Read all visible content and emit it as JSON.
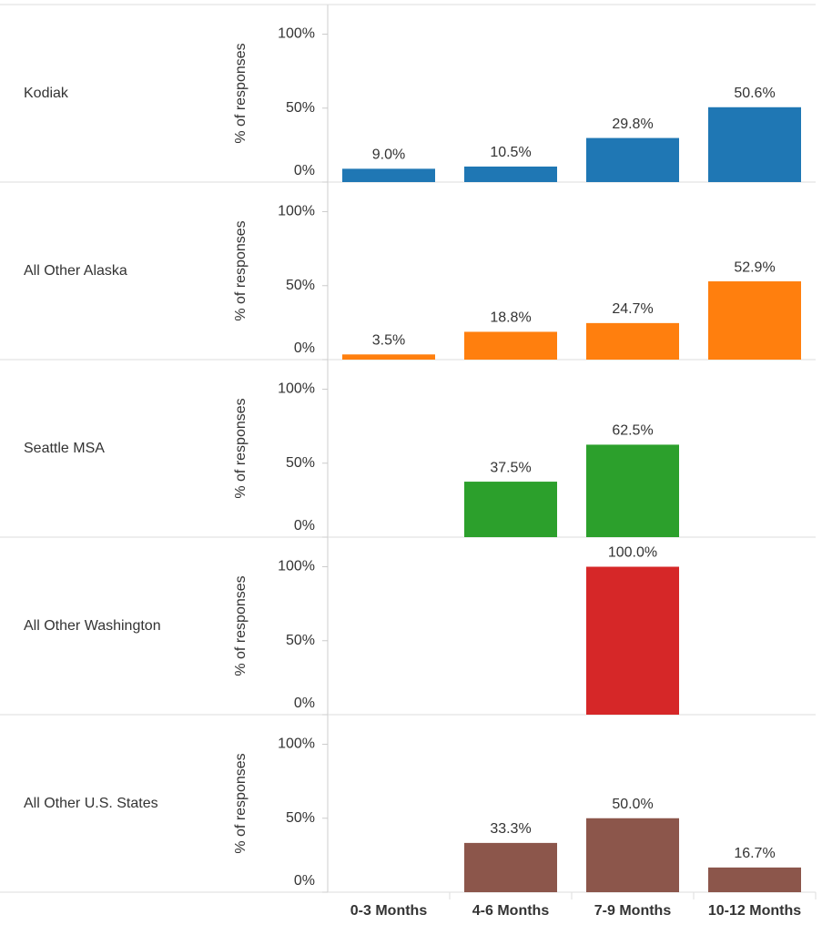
{
  "chart_data": [
    {
      "type": "bar",
      "title": "Kodiak",
      "y_label": "% of responses",
      "color": "#1f77b4",
      "values": [
        9.0,
        10.5,
        29.8,
        50.6
      ],
      "value_labels": [
        "9.0%",
        "10.5%",
        "29.8%",
        "50.6%"
      ],
      "ylim": [
        0,
        120
      ],
      "yticks": [
        {
          "value": 0,
          "label": "0%"
        },
        {
          "value": 50,
          "label": "50%"
        },
        {
          "value": 100,
          "label": "100%"
        }
      ]
    },
    {
      "type": "bar",
      "title": "All Other Alaska",
      "y_label": "% of responses",
      "color": "#ff7f0e",
      "values": [
        3.5,
        18.8,
        24.7,
        52.9
      ],
      "value_labels": [
        "3.5%",
        "18.8%",
        "24.7%",
        "52.9%"
      ],
      "ylim": [
        0,
        120
      ],
      "yticks": [
        {
          "value": 0,
          "label": "0%"
        },
        {
          "value": 50,
          "label": "50%"
        },
        {
          "value": 100,
          "label": "100%"
        }
      ]
    },
    {
      "type": "bar",
      "title": "Seattle MSA",
      "y_label": "% of responses",
      "color": "#2ca02c",
      "values": [
        null,
        37.5,
        62.5,
        null
      ],
      "value_labels": [
        null,
        "37.5%",
        "62.5%",
        null
      ],
      "ylim": [
        0,
        120
      ],
      "yticks": [
        {
          "value": 0,
          "label": "0%"
        },
        {
          "value": 50,
          "label": "50%"
        },
        {
          "value": 100,
          "label": "100%"
        }
      ]
    },
    {
      "type": "bar",
      "title": "All Other Washington",
      "y_label": "% of responses",
      "color": "#d62728",
      "values": [
        null,
        null,
        100.0,
        null
      ],
      "value_labels": [
        null,
        null,
        "100.0%",
        null
      ],
      "ylim": [
        0,
        120
      ],
      "yticks": [
        {
          "value": 0,
          "label": "0%"
        },
        {
          "value": 50,
          "label": "50%"
        },
        {
          "value": 100,
          "label": "100%"
        }
      ]
    },
    {
      "type": "bar",
      "title": "All Other U.S. States",
      "y_label": "% of responses",
      "color": "#8c564b",
      "categories": [
        "0-3 Months",
        "4-6 Months",
        "7-9 Months",
        "10-12 Months"
      ],
      "values": [
        null,
        33.3,
        50.0,
        16.7
      ],
      "value_labels": [
        null,
        "33.3%",
        "50.0%",
        "16.7%"
      ],
      "ylim": [
        0,
        120
      ],
      "yticks": [
        {
          "value": 0,
          "label": "0%"
        },
        {
          "value": 50,
          "label": "50%"
        },
        {
          "value": 100,
          "label": "100%"
        }
      ]
    }
  ]
}
